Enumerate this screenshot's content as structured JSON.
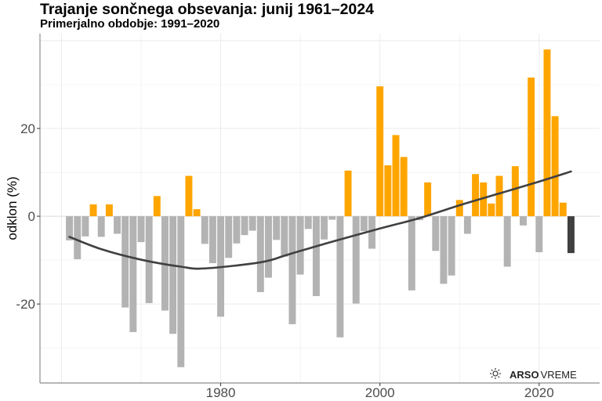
{
  "header": {
    "title": "Trajanje sončnega obsevanja: junij 1961–2024",
    "subtitle": "Primerjalno obdobje: 1991–2020"
  },
  "logo": {
    "icon": "sun-icon",
    "brand_bold": "ARSO",
    "brand_thin": "VREME"
  },
  "colors": {
    "positive": "#FFA500",
    "negative": "#B3B3B3",
    "current": "#404040",
    "trend": "#404040",
    "grid": "#EBEBEB",
    "axis": "#8C8C8C"
  },
  "chart_data": {
    "type": "bar",
    "title": "Trajanje sončnega obsevanja: junij 1961–2024",
    "subtitle": "Primerjalno obdobje: 1991–2020",
    "xlabel": "",
    "ylabel": "odklon (%)",
    "xlim": [
      1957.3,
      2027.6
    ],
    "ylim": [
      -38,
      41.6
    ],
    "x_ticks": [
      1980,
      2000,
      2020
    ],
    "x_tick_labels": [
      "1980",
      "2000",
      "2020"
    ],
    "y_ticks": [
      -20,
      0,
      20
    ],
    "y_tick_labels": [
      "-20",
      "0",
      "20"
    ],
    "grid": true,
    "legend": "none",
    "categories": [
      1961,
      1962,
      1963,
      1964,
      1965,
      1966,
      1967,
      1968,
      1969,
      1970,
      1971,
      1972,
      1973,
      1974,
      1975,
      1976,
      1977,
      1978,
      1979,
      1980,
      1981,
      1982,
      1983,
      1984,
      1985,
      1986,
      1987,
      1988,
      1989,
      1990,
      1991,
      1992,
      1993,
      1994,
      1995,
      1996,
      1997,
      1998,
      1999,
      2000,
      2001,
      2002,
      2003,
      2004,
      2005,
      2006,
      2007,
      2008,
      2009,
      2010,
      2011,
      2012,
      2013,
      2014,
      2015,
      2016,
      2017,
      2018,
      2019,
      2020,
      2021,
      2022,
      2023,
      2024
    ],
    "values": [
      -5.5,
      -9.8,
      -4.6,
      2.7,
      -4.7,
      2.7,
      -4.0,
      -20.8,
      -26.4,
      -5.9,
      -19.8,
      4.6,
      -21.5,
      -26.8,
      -34.4,
      9.2,
      1.6,
      -6.3,
      -10.7,
      -22.9,
      -9.5,
      -6.2,
      -4.3,
      -3.3,
      -17.3,
      -14.0,
      -5.4,
      -9.2,
      -24.6,
      -13.3,
      -2.9,
      -18.2,
      -5.3,
      -0.8,
      -27.6,
      10.4,
      -19.9,
      -3.4,
      -7.4,
      29.6,
      11.6,
      18.5,
      13.5,
      -16.9,
      -0.9,
      7.7,
      -7.9,
      -15.4,
      -13.5,
      3.7,
      -4.0,
      9.6,
      7.7,
      2.9,
      9.2,
      -11.5,
      11.4,
      -2.1,
      31.6,
      -8.2,
      38.0,
      22.8,
      3.1,
      -8.4
    ],
    "highlight_year": 2024,
    "trend": {
      "name": "smoothed trend",
      "x": [
        1961,
        1965,
        1970,
        1975,
        1978,
        1985,
        1988,
        1990,
        1995,
        2000,
        2005,
        2010,
        2015,
        2020,
        2024
      ],
      "y": [
        -4.7,
        -7.5,
        -9.9,
        -11.5,
        -11.9,
        -10.5,
        -9.0,
        -7.9,
        -5.3,
        -2.8,
        -0.4,
        2.5,
        5.2,
        7.9,
        10.2
      ]
    }
  }
}
